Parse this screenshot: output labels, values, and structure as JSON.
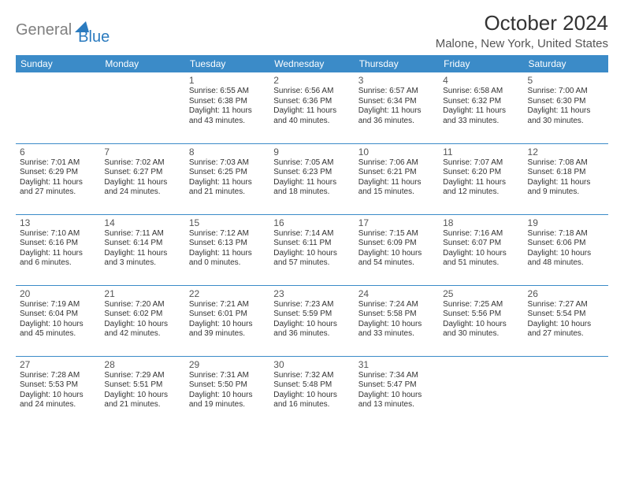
{
  "logo": {
    "text_gray": "General",
    "text_blue": "Blue",
    "shape_color": "#2b7bbf"
  },
  "title": "October 2024",
  "location": "Malone, New York, United States",
  "colors": {
    "header_bg": "#3b8bc8",
    "header_text": "#ffffff",
    "border": "#3b8bc8",
    "daynum": "#555555",
    "info_text": "#333333"
  },
  "dayHeaders": [
    "Sunday",
    "Monday",
    "Tuesday",
    "Wednesday",
    "Thursday",
    "Friday",
    "Saturday"
  ],
  "weeks": [
    [
      null,
      null,
      {
        "n": "1",
        "sr": "6:55 AM",
        "ss": "6:38 PM",
        "dl": "11 hours and 43 minutes."
      },
      {
        "n": "2",
        "sr": "6:56 AM",
        "ss": "6:36 PM",
        "dl": "11 hours and 40 minutes."
      },
      {
        "n": "3",
        "sr": "6:57 AM",
        "ss": "6:34 PM",
        "dl": "11 hours and 36 minutes."
      },
      {
        "n": "4",
        "sr": "6:58 AM",
        "ss": "6:32 PM",
        "dl": "11 hours and 33 minutes."
      },
      {
        "n": "5",
        "sr": "7:00 AM",
        "ss": "6:30 PM",
        "dl": "11 hours and 30 minutes."
      }
    ],
    [
      {
        "n": "6",
        "sr": "7:01 AM",
        "ss": "6:29 PM",
        "dl": "11 hours and 27 minutes."
      },
      {
        "n": "7",
        "sr": "7:02 AM",
        "ss": "6:27 PM",
        "dl": "11 hours and 24 minutes."
      },
      {
        "n": "8",
        "sr": "7:03 AM",
        "ss": "6:25 PM",
        "dl": "11 hours and 21 minutes."
      },
      {
        "n": "9",
        "sr": "7:05 AM",
        "ss": "6:23 PM",
        "dl": "11 hours and 18 minutes."
      },
      {
        "n": "10",
        "sr": "7:06 AM",
        "ss": "6:21 PM",
        "dl": "11 hours and 15 minutes."
      },
      {
        "n": "11",
        "sr": "7:07 AM",
        "ss": "6:20 PM",
        "dl": "11 hours and 12 minutes."
      },
      {
        "n": "12",
        "sr": "7:08 AM",
        "ss": "6:18 PM",
        "dl": "11 hours and 9 minutes."
      }
    ],
    [
      {
        "n": "13",
        "sr": "7:10 AM",
        "ss": "6:16 PM",
        "dl": "11 hours and 6 minutes."
      },
      {
        "n": "14",
        "sr": "7:11 AM",
        "ss": "6:14 PM",
        "dl": "11 hours and 3 minutes."
      },
      {
        "n": "15",
        "sr": "7:12 AM",
        "ss": "6:13 PM",
        "dl": "11 hours and 0 minutes."
      },
      {
        "n": "16",
        "sr": "7:14 AM",
        "ss": "6:11 PM",
        "dl": "10 hours and 57 minutes."
      },
      {
        "n": "17",
        "sr": "7:15 AM",
        "ss": "6:09 PM",
        "dl": "10 hours and 54 minutes."
      },
      {
        "n": "18",
        "sr": "7:16 AM",
        "ss": "6:07 PM",
        "dl": "10 hours and 51 minutes."
      },
      {
        "n": "19",
        "sr": "7:18 AM",
        "ss": "6:06 PM",
        "dl": "10 hours and 48 minutes."
      }
    ],
    [
      {
        "n": "20",
        "sr": "7:19 AM",
        "ss": "6:04 PM",
        "dl": "10 hours and 45 minutes."
      },
      {
        "n": "21",
        "sr": "7:20 AM",
        "ss": "6:02 PM",
        "dl": "10 hours and 42 minutes."
      },
      {
        "n": "22",
        "sr": "7:21 AM",
        "ss": "6:01 PM",
        "dl": "10 hours and 39 minutes."
      },
      {
        "n": "23",
        "sr": "7:23 AM",
        "ss": "5:59 PM",
        "dl": "10 hours and 36 minutes."
      },
      {
        "n": "24",
        "sr": "7:24 AM",
        "ss": "5:58 PM",
        "dl": "10 hours and 33 minutes."
      },
      {
        "n": "25",
        "sr": "7:25 AM",
        "ss": "5:56 PM",
        "dl": "10 hours and 30 minutes."
      },
      {
        "n": "26",
        "sr": "7:27 AM",
        "ss": "5:54 PM",
        "dl": "10 hours and 27 minutes."
      }
    ],
    [
      {
        "n": "27",
        "sr": "7:28 AM",
        "ss": "5:53 PM",
        "dl": "10 hours and 24 minutes."
      },
      {
        "n": "28",
        "sr": "7:29 AM",
        "ss": "5:51 PM",
        "dl": "10 hours and 21 minutes."
      },
      {
        "n": "29",
        "sr": "7:31 AM",
        "ss": "5:50 PM",
        "dl": "10 hours and 19 minutes."
      },
      {
        "n": "30",
        "sr": "7:32 AM",
        "ss": "5:48 PM",
        "dl": "10 hours and 16 minutes."
      },
      {
        "n": "31",
        "sr": "7:34 AM",
        "ss": "5:47 PM",
        "dl": "10 hours and 13 minutes."
      },
      null,
      null
    ]
  ],
  "labels": {
    "sunrise": "Sunrise:",
    "sunset": "Sunset:",
    "daylight": "Daylight:"
  }
}
